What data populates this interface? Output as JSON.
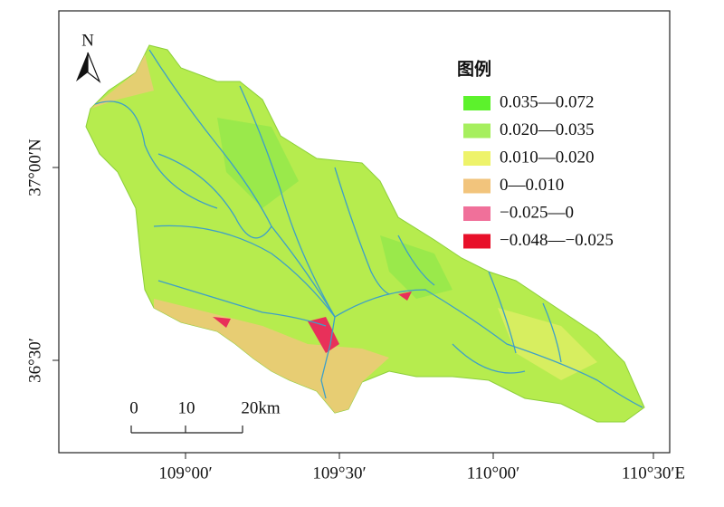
{
  "north_arrow": {
    "label": "N"
  },
  "legend": {
    "title": "图例",
    "items": [
      {
        "label": "0.035—0.072",
        "color": "#5cf22c"
      },
      {
        "label": "0.020—0.035",
        "color": "#a6ef5e"
      },
      {
        "label": "0.010—0.020",
        "color": "#eef36a"
      },
      {
        "label": "0—0.010",
        "color": "#f2c47c"
      },
      {
        "label": "−0.025—0",
        "color": "#f0709a"
      },
      {
        "label": "−0.048—−0.025",
        "color": "#e8102a"
      }
    ]
  },
  "scale_bar": {
    "labels": [
      "0",
      "10",
      "20km"
    ]
  },
  "lat_labels": [
    "37°00′N",
    "36°30′"
  ],
  "lon_labels": [
    "109°00′",
    "109°30′",
    "110°00′",
    "110°30′E"
  ]
}
